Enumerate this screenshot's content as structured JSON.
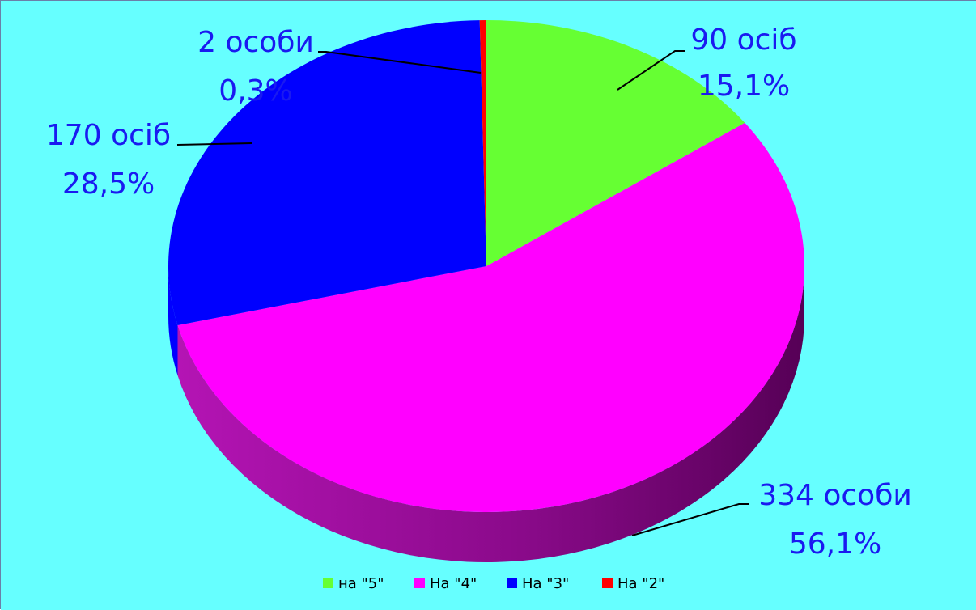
{
  "chart_data": {
    "type": "pie",
    "style": "3d",
    "background": "#66FFFF",
    "label_color": "#1A1AF0",
    "legend_position": "bottom",
    "title": "",
    "series": [
      {
        "name": "",
        "categories": [
          "на \"5\"",
          "На \"4\"",
          "На \"3\"",
          "На \"2\""
        ],
        "values": [
          90,
          334,
          170,
          2
        ],
        "percentages": [
          15.1,
          56.1,
          28.5,
          0.3
        ],
        "colors": [
          "#66FF33",
          "#FF00FF",
          "#0000FF",
          "#FF0000"
        ]
      }
    ],
    "data_labels": [
      {
        "count": "90 осіб",
        "percent": "15,1%"
      },
      {
        "count": "334 особи",
        "percent": "56,1%"
      },
      {
        "count": "170 осіб",
        "percent": "28,5%"
      },
      {
        "count": "2 особи",
        "percent": "0,3%"
      }
    ]
  }
}
